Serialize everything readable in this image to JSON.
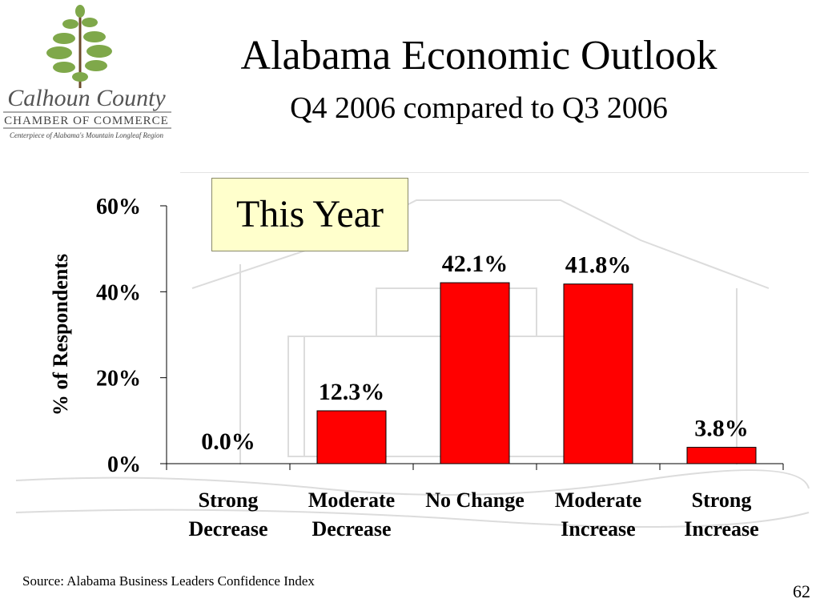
{
  "header": {
    "title": "Alabama Economic Outlook",
    "subtitle": "Q4 2006 compared to Q3 2006"
  },
  "logo": {
    "name": "Calhoun County",
    "line1": "CHAMBER OF COMMERCE",
    "tagline": "Centerpiece of Alabama's Mountain Longleaf Region"
  },
  "callout": "This Year",
  "footer": {
    "source": "Source: Alabama Business Leaders Confidence Index",
    "page": "62"
  },
  "colors": {
    "bar": "#ff0000",
    "callout_bg": "#ffffcc"
  },
  "chart_data": {
    "type": "bar",
    "title": "",
    "xlabel": "",
    "ylabel": "% of Respondents",
    "ylim": [
      0,
      60
    ],
    "yticks": [
      0,
      20,
      40,
      60
    ],
    "ytick_labels": [
      "0%",
      "20%",
      "40%",
      "60%"
    ],
    "grid": false,
    "categories": [
      [
        "Strong",
        "Decrease"
      ],
      [
        "Moderate",
        "Decrease"
      ],
      [
        "No Change"
      ],
      [
        "Moderate",
        "Increase"
      ],
      [
        "Strong",
        "Increase"
      ]
    ],
    "values": [
      0.0,
      12.3,
      42.1,
      41.8,
      3.8
    ],
    "value_labels": [
      "0.0%",
      "12.3%",
      "42.1%",
      "41.8%",
      "3.8%"
    ]
  }
}
